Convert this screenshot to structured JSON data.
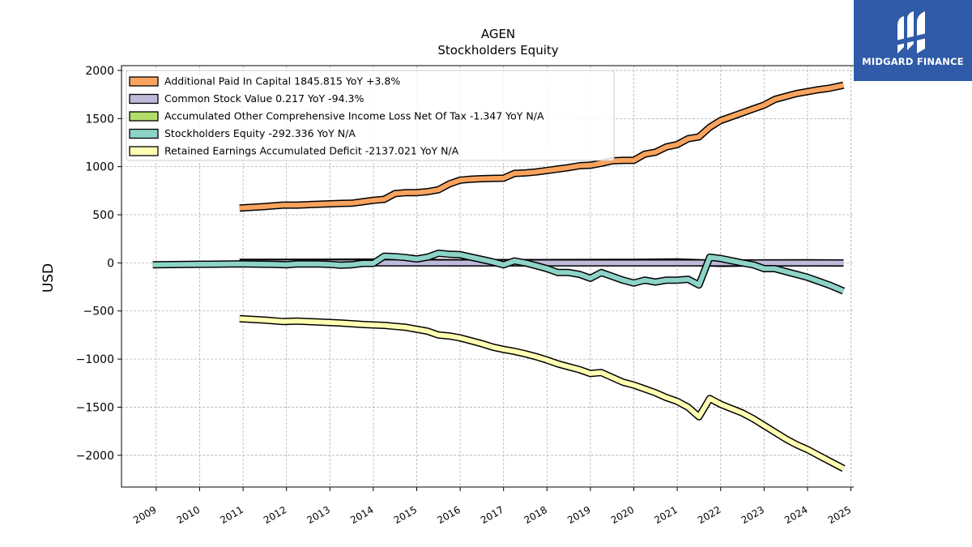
{
  "chart_data": {
    "type": "line",
    "title": "AGEN",
    "subtitle": "Stockholders  Equity",
    "ylabel": "USD",
    "xlabel": "",
    "xlim": [
      2008.2,
      2025.55
    ],
    "ylim": [
      -2330,
      2050
    ],
    "xticks": [
      "2009",
      "2010",
      "2011",
      "2012",
      "2013",
      "2014",
      "2015",
      "2016",
      "2017",
      "2018",
      "2019",
      "2020",
      "2021",
      "2022",
      "2023",
      "2024",
      "2025"
    ],
    "yticks": [
      2000,
      1500,
      1000,
      500,
      0,
      -500,
      -1000,
      -1500,
      -2000
    ],
    "ytick_labels": [
      "2000",
      "1500",
      "1000",
      "500",
      "0",
      "−500",
      "−1000",
      "−1500",
      "−2000"
    ],
    "grid": true,
    "legend_position": "top-left",
    "series": [
      {
        "name": "Additional Paid In Capital",
        "legend": "Additional Paid In Capital  1845.815 YoY +3.8%",
        "color": "#f9a35e",
        "x": [
          2010.92,
          2011.5,
          2011.92,
          2012.25,
          2012.75,
          2013.25,
          2013.5,
          2013.75,
          2014.0,
          2014.25,
          2014.5,
          2014.75,
          2015.0,
          2015.25,
          2015.5,
          2015.75,
          2016.0,
          2016.25,
          2016.5,
          2016.75,
          2017.0,
          2017.25,
          2017.5,
          2017.75,
          2018.0,
          2018.25,
          2018.5,
          2018.75,
          2019.0,
          2019.25,
          2019.5,
          2019.75,
          2020.0,
          2020.25,
          2020.5,
          2020.75,
          2021.0,
          2021.25,
          2021.5,
          2021.75,
          2022.0,
          2022.5,
          2022.75,
          2023.0,
          2023.25,
          2023.5,
          2023.75,
          2024.0,
          2024.25,
          2024.5,
          2024.83
        ],
        "y": [
          570,
          585,
          600,
          600,
          610,
          618,
          620,
          635,
          650,
          660,
          720,
          730,
          730,
          740,
          760,
          820,
          860,
          870,
          875,
          878,
          880,
          930,
          935,
          945,
          960,
          975,
          990,
          1010,
          1015,
          1035,
          1060,
          1065,
          1065,
          1130,
          1150,
          1205,
          1230,
          1290,
          1310,
          1410,
          1480,
          1560,
          1600,
          1640,
          1700,
          1730,
          1760,
          1780,
          1800,
          1815,
          1845.815
        ]
      },
      {
        "name": "Common Stock Value",
        "legend": "Common Stock Value  0.217 YoY -94.3%",
        "color": "#bebada",
        "x": [
          2010.92,
          2024.83
        ],
        "y": [
          0.5,
          0.217
        ]
      },
      {
        "name": "Accumulated Other Comprehensive Income Loss Net Of Tax",
        "legend": "Accumulated Other Comprehensive Income Loss Net Of Tax  -1.347 YoY N/A",
        "color": "#b3de69",
        "x": [
          2010.92,
          2014.0,
          2016.0,
          2018.0,
          2020.0,
          2021.0,
          2022.0,
          2023.0,
          2024.0,
          2024.83
        ],
        "y": [
          5,
          8,
          2,
          3,
          6,
          10,
          -5,
          0,
          1,
          -1.347
        ]
      },
      {
        "name": "Stockholders Equity",
        "legend": "Stockholders Equity  -292.336 YoY N/A",
        "color": "#8dd3c7",
        "x": [
          2008.92,
          2010.92,
          2011.75,
          2012.0,
          2012.25,
          2012.75,
          2013.0,
          2013.25,
          2013.5,
          2013.75,
          2014.0,
          2014.25,
          2014.5,
          2014.75,
          2015.0,
          2015.25,
          2015.5,
          2015.75,
          2016.0,
          2016.25,
          2016.5,
          2016.75,
          2017.0,
          2017.25,
          2017.5,
          2017.75,
          2018.0,
          2018.25,
          2018.5,
          2018.75,
          2019.0,
          2019.25,
          2019.5,
          2019.75,
          2020.0,
          2020.25,
          2020.5,
          2020.75,
          2021.0,
          2021.25,
          2021.5,
          2021.75,
          2022.0,
          2022.5,
          2022.75,
          2023.0,
          2023.25,
          2023.5,
          2023.75,
          2024.0,
          2024.5,
          2024.83
        ],
        "y": [
          -20,
          -10,
          -15,
          -20,
          -10,
          -12,
          -15,
          -25,
          -20,
          -5,
          -5,
          70,
          65,
          55,
          40,
          60,
          100,
          90,
          85,
          60,
          35,
          10,
          -20,
          20,
          0,
          -30,
          -60,
          -100,
          -100,
          -120,
          -160,
          -100,
          -140,
          -180,
          -210,
          -180,
          -200,
          -180,
          -180,
          -170,
          -230,
          60,
          45,
          0,
          -20,
          -60,
          -60,
          -90,
          -120,
          -150,
          -230,
          -292.336
        ]
      },
      {
        "name": "Retained Earnings Accumulated Deficit",
        "legend": "Retained Earnings Accumulated Deficit  -2137.021 YoY N/A",
        "color": "#ffffb3",
        "x": [
          2010.92,
          2011.5,
          2011.92,
          2012.25,
          2012.75,
          2013.25,
          2013.75,
          2014.0,
          2014.25,
          2014.5,
          2014.75,
          2015.0,
          2015.25,
          2015.5,
          2015.75,
          2016.0,
          2016.25,
          2016.5,
          2016.75,
          2017.0,
          2017.25,
          2017.5,
          2017.75,
          2018.0,
          2018.25,
          2018.5,
          2018.75,
          2019.0,
          2019.25,
          2019.5,
          2019.75,
          2020.0,
          2020.25,
          2020.5,
          2020.75,
          2021.0,
          2021.25,
          2021.5,
          2021.75,
          2022.0,
          2022.5,
          2022.75,
          2023.0,
          2023.25,
          2023.5,
          2023.75,
          2024.0,
          2024.25,
          2024.5,
          2024.83
        ],
        "y": [
          -580,
          -595,
          -610,
          -605,
          -615,
          -625,
          -640,
          -645,
          -650,
          -660,
          -670,
          -690,
          -710,
          -750,
          -760,
          -780,
          -810,
          -840,
          -875,
          -900,
          -920,
          -945,
          -975,
          -1010,
          -1050,
          -1080,
          -1110,
          -1150,
          -1140,
          -1190,
          -1240,
          -1270,
          -1310,
          -1350,
          -1400,
          -1440,
          -1500,
          -1600,
          -1410,
          -1470,
          -1560,
          -1620,
          -1690,
          -1760,
          -1830,
          -1890,
          -1940,
          -2000,
          -2060,
          -2137.021
        ]
      }
    ]
  },
  "logo": {
    "text": "MIDGARD FINANCE",
    "color": "#2f5ba8"
  }
}
